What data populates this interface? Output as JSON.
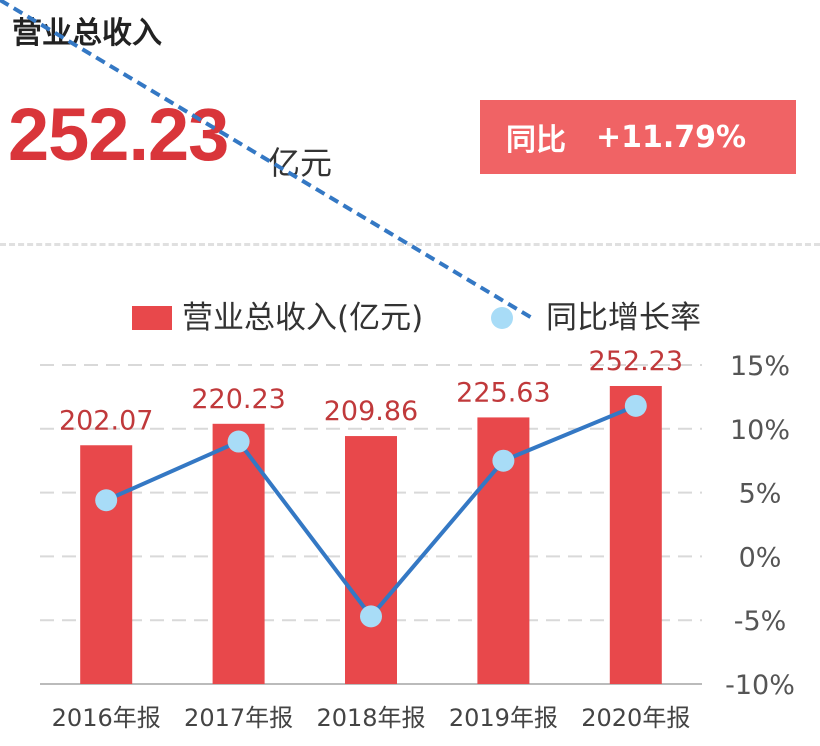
{
  "header": {
    "title": "营业总收入",
    "value": "252.23",
    "unit": "亿元",
    "yoy_label": "同比",
    "yoy_value": "+11.79%"
  },
  "colors": {
    "bar": "#e8484b",
    "line": "#3478c4",
    "marker": "#a8dcf7",
    "badge": "#f06365",
    "value": "#d9353a"
  },
  "chart_data": {
    "type": "bar",
    "categories": [
      "2016年报",
      "2017年报",
      "2018年报",
      "2019年报",
      "2020年报"
    ],
    "series": [
      {
        "name": "营业总收入(亿元)",
        "type": "bar",
        "values": [
          202.07,
          220.23,
          209.86,
          225.63,
          252.23
        ],
        "labels": [
          "202.07",
          "220.23",
          "209.86",
          "225.63",
          "252.23"
        ]
      },
      {
        "name": "同比增长率",
        "type": "line",
        "axis": "right",
        "values": [
          4.4,
          9.0,
          -4.7,
          7.5,
          11.8
        ]
      }
    ],
    "y_right": {
      "ticks": [
        "15%",
        "10%",
        "5%",
        "0%",
        "-5%",
        "-10%"
      ],
      "range": [
        -10,
        15
      ]
    },
    "bar_axis_range": [
      0,
      270
    ],
    "grid": true,
    "legend_position": "top"
  }
}
